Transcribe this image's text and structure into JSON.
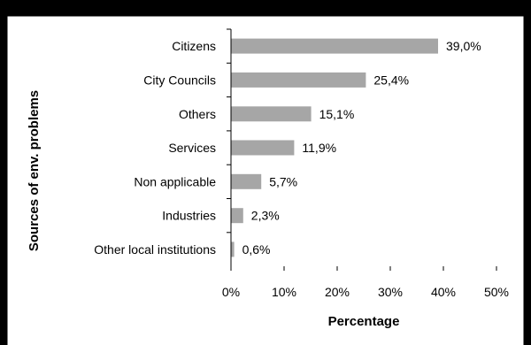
{
  "chart_data": {
    "type": "bar",
    "orientation": "horizontal",
    "categories": [
      "Citizens",
      "City Councils",
      "Others",
      "Services",
      "Non applicable",
      "Industries",
      "Other local institutions"
    ],
    "values": [
      39.0,
      25.4,
      15.1,
      11.9,
      5.7,
      2.3,
      0.6
    ],
    "value_labels": [
      "39,0%",
      "25,4%",
      "15,1%",
      "11,9%",
      "5,7%",
      "2,3%",
      "0,6%"
    ],
    "xlabel": "Percentage",
    "ylabel": "Sources of env. problems",
    "xlim": [
      0,
      50
    ],
    "xticks": [
      0,
      10,
      20,
      30,
      40,
      50
    ],
    "xtick_labels": [
      "0%",
      "10%",
      "20%",
      "30%",
      "40%",
      "50%"
    ],
    "grid": false,
    "bar_color": "#a6a6a6"
  }
}
